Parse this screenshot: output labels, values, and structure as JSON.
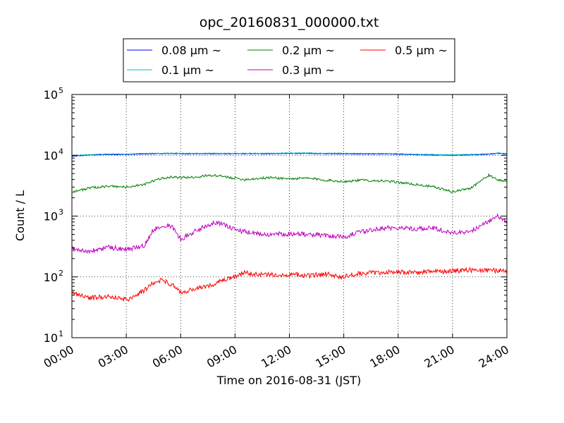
{
  "chart_data": {
    "type": "line",
    "title": "opc_20160831_000000.txt",
    "xlabel": "Time on 2016-08-31 (JST)",
    "ylabel": "Count / L",
    "y_scale": "log",
    "ylim": [
      10,
      100000
    ],
    "xlim": [
      "00:00",
      "24:00"
    ],
    "grid": true,
    "legend_position": "top, above plot",
    "x_ticks": [
      "00:00",
      "03:00",
      "06:00",
      "09:00",
      "12:00",
      "15:00",
      "18:00",
      "21:00",
      "24:00"
    ],
    "y_ticks": [
      {
        "base": "10",
        "exp": "1"
      },
      {
        "base": "10",
        "exp": "2"
      },
      {
        "base": "10",
        "exp": "3"
      },
      {
        "base": "10",
        "exp": "4"
      },
      {
        "base": "10",
        "exp": "5"
      }
    ],
    "x": [
      "00:00",
      "01:00",
      "02:00",
      "03:00",
      "04:00",
      "04:30",
      "05:00",
      "05:30",
      "06:00",
      "07:00",
      "07:30",
      "08:00",
      "09:00",
      "09:30",
      "10:00",
      "11:00",
      "12:00",
      "13:00",
      "14:00",
      "15:00",
      "16:00",
      "17:00",
      "18:00",
      "19:00",
      "20:00",
      "21:00",
      "22:00",
      "23:00",
      "23:30",
      "24:00"
    ],
    "series": [
      {
        "name": "0.08 μm ~",
        "color": "#0000ff",
        "values": [
          9600,
          10100,
          10300,
          10300,
          10500,
          10600,
          10600,
          10700,
          10600,
          10600,
          10600,
          10600,
          10600,
          10600,
          10600,
          10600,
          10700,
          10700,
          10600,
          10600,
          10500,
          10500,
          10400,
          10200,
          10100,
          10000,
          10100,
          10400,
          10700,
          10500
        ]
      },
      {
        "name": "0.1 μm ~",
        "color": "#00bfbf",
        "values": [
          9900,
          10300,
          10500,
          10500,
          10700,
          10800,
          10800,
          10900,
          10800,
          10800,
          10800,
          10800,
          10800,
          10800,
          10800,
          10800,
          10900,
          10900,
          10800,
          10800,
          10700,
          10700,
          10600,
          10400,
          10300,
          10200,
          10300,
          10600,
          10900,
          10700
        ]
      },
      {
        "name": "0.2 μm ~",
        "color": "#008000",
        "values": [
          2500,
          2900,
          3100,
          3000,
          3300,
          3800,
          4200,
          4400,
          4300,
          4400,
          4700,
          4600,
          4200,
          4000,
          4100,
          4300,
          4100,
          4200,
          3900,
          3700,
          3900,
          3800,
          3600,
          3300,
          3000,
          2500,
          2900,
          4700,
          3900,
          3800
        ]
      },
      {
        "name": "0.3 μm ~",
        "color": "#bf00bf",
        "values": [
          290,
          260,
          310,
          280,
          330,
          600,
          720,
          680,
          420,
          600,
          720,
          800,
          600,
          550,
          520,
          500,
          510,
          500,
          480,
          460,
          550,
          630,
          650,
          620,
          630,
          520,
          560,
          820,
          1000,
          780
        ]
      },
      {
        "name": "0.5 μm ~",
        "color": "#ff0000",
        "values": [
          55,
          45,
          48,
          42,
          60,
          80,
          90,
          75,
          55,
          65,
          70,
          80,
          100,
          118,
          110,
          108,
          110,
          105,
          112,
          100,
          115,
          118,
          120,
          118,
          122,
          125,
          130,
          125,
          128,
          130
        ]
      }
    ]
  }
}
